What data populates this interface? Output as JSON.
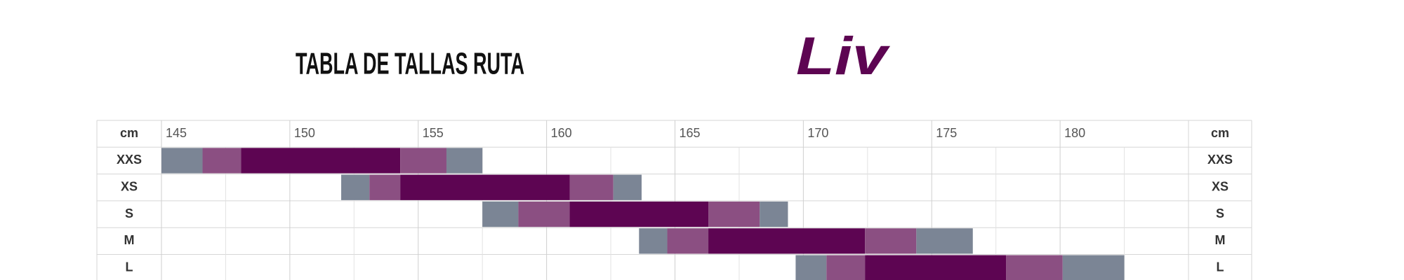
{
  "chart_data": {
    "type": "range-bar",
    "title": "TABLA DE TALLAS RUTA",
    "brand": "Liv",
    "unit_label": "cm",
    "xlim": [
      145,
      185
    ],
    "xticks": [
      145,
      150,
      155,
      160,
      165,
      170,
      175,
      180
    ],
    "xticks_minor": [
      147.5,
      152.5,
      157.5,
      162.5,
      167.5,
      172.5,
      177.5,
      182.5
    ],
    "segment_colors": [
      "#7b8595",
      "#8b4f82",
      "#5d0552",
      "#8b4f82",
      "#7b8595"
    ],
    "categories": [
      "XXS",
      "XS",
      "S",
      "M",
      "L"
    ],
    "rows": [
      {
        "bounds": [
          145,
          146.6,
          148.1,
          154.3,
          156.1,
          157.5
        ]
      },
      {
        "bounds": [
          152.0,
          153.1,
          154.3,
          160.9,
          162.6,
          163.7
        ]
      },
      {
        "bounds": [
          157.5,
          158.9,
          160.9,
          166.3,
          168.3,
          169.4
        ]
      },
      {
        "bounds": [
          163.6,
          164.7,
          166.3,
          172.4,
          174.4,
          176.6
        ]
      },
      {
        "bounds": [
          169.7,
          170.9,
          172.4,
          177.9,
          180.1,
          182.5
        ]
      }
    ]
  }
}
